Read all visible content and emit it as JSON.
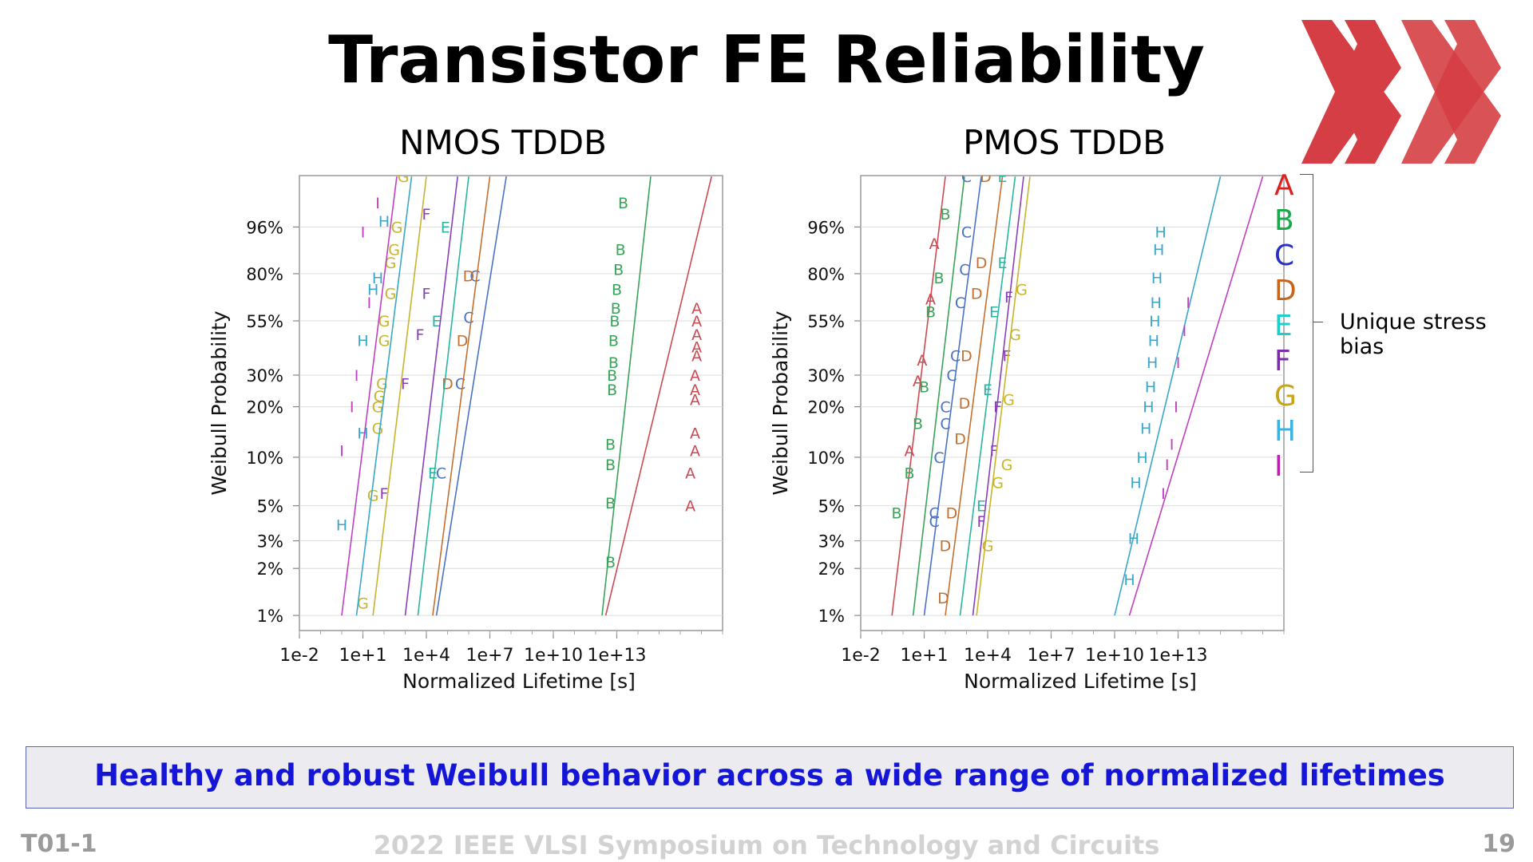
{
  "slide": {
    "title": "Transistor FE Reliability",
    "banner": "Healthy and robust Weibull behavior across a wide range of normalized lifetimes",
    "footer_left": "T01-1",
    "footer_center": "2022 IEEE VLSI Symposium on Technology and Circuits",
    "footer_right": "19"
  },
  "legend": {
    "note": "Unique stress bias",
    "items": [
      {
        "label": "A",
        "color": "#e02020"
      },
      {
        "label": "B",
        "color": "#19a84a"
      },
      {
        "label": "C",
        "color": "#2a2ec8"
      },
      {
        "label": "D",
        "color": "#c8651a"
      },
      {
        "label": "E",
        "color": "#1ccfc8"
      },
      {
        "label": "F",
        "color": "#7a2da6"
      },
      {
        "label": "G",
        "color": "#c8a512"
      },
      {
        "label": "H",
        "color": "#3bb2e0"
      },
      {
        "label": "I",
        "color": "#c020b0"
      }
    ]
  },
  "series_colors": {
    "A": "#cc4a52",
    "B": "#3aa35a",
    "C": "#4a72c4",
    "D": "#c37030",
    "E": "#2ab5a0",
    "F": "#8a3eb8",
    "G": "#c8b42a",
    "H": "#3aa6c8",
    "I": "#c040c0"
  },
  "chart_data": [
    {
      "type": "scatter",
      "title": "NMOS TDDB",
      "xlabel": "Normalized Lifetime [s]",
      "ylabel": "Weibull Probability",
      "x_scale": "log10",
      "xlim": [
        0.01,
        1e+18
      ],
      "x_ticks": [
        "1e-2",
        "1e+1",
        "1e+4",
        "1e+7",
        "1e+10",
        "1e+13"
      ],
      "y_scale": "weibull",
      "ylim": [
        0.008,
        0.999
      ],
      "y_ticks": [
        "1%",
        "2%",
        "3%",
        "5%",
        "10%",
        "20%",
        "30%",
        "55%",
        "80%",
        "96%"
      ],
      "grid": true,
      "series": [
        {
          "name": "A",
          "fit_line": [
            [
              3000000000000.0,
              0.01
            ],
            [
              3e+17,
              0.999
            ]
          ],
          "points": [
            [
              3e+16,
              0.05
            ],
            [
              3e+16,
              0.08
            ],
            [
              5e+16,
              0.11
            ],
            [
              5e+16,
              0.14
            ],
            [
              5e+16,
              0.22
            ],
            [
              5e+16,
              0.25
            ],
            [
              5e+16,
              0.3
            ],
            [
              6e+16,
              0.38
            ],
            [
              6e+16,
              0.42
            ],
            [
              6e+16,
              0.48
            ],
            [
              6e+16,
              0.55
            ],
            [
              6e+16,
              0.62
            ]
          ]
        },
        {
          "name": "B",
          "fit_line": [
            [
              2000000000000.0,
              0.01
            ],
            [
              400000000000000.0,
              0.999
            ]
          ],
          "points": [
            [
              5000000000000.0,
              0.022
            ],
            [
              5000000000000.0,
              0.052
            ],
            [
              5000000000000.0,
              0.09
            ],
            [
              5000000000000.0,
              0.12
            ],
            [
              6000000000000.0,
              0.25
            ],
            [
              6000000000000.0,
              0.3
            ],
            [
              7000000000000.0,
              0.35
            ],
            [
              7000000000000.0,
              0.45
            ],
            [
              8000000000000.0,
              0.55
            ],
            [
              9000000000000.0,
              0.62
            ],
            [
              10000000000000.0,
              0.72
            ],
            [
              12000000000000.0,
              0.82
            ],
            [
              15000000000000.0,
              0.9
            ],
            [
              20000000000000.0,
              0.99
            ]
          ]
        },
        {
          "name": "C",
          "fit_line": [
            [
              30000.0,
              0.01
            ],
            [
              60000000.0,
              0.999
            ]
          ],
          "points": [
            [
              50000.0,
              0.08
            ],
            [
              400000.0,
              0.27
            ],
            [
              1000000.0,
              0.57
            ],
            [
              2000000.0,
              0.79
            ]
          ]
        },
        {
          "name": "D",
          "fit_line": [
            [
              20000.0,
              0.01
            ],
            [
              10000000.0,
              0.999
            ]
          ],
          "points": [
            [
              100000.0,
              0.27
            ],
            [
              500000.0,
              0.45
            ],
            [
              1000000.0,
              0.79
            ]
          ]
        },
        {
          "name": "E",
          "fit_line": [
            [
              4000.0,
              0.01
            ],
            [
              1000000.0,
              0.999
            ]
          ],
          "points": [
            [
              20000.0,
              0.08
            ],
            [
              30000.0,
              0.55
            ],
            [
              80000.0,
              0.96
            ]
          ]
        },
        {
          "name": "F",
          "fit_line": [
            [
              1000.0,
              0.01
            ],
            [
              300000.0,
              0.999
            ]
          ],
          "points": [
            [
              100.0,
              0.06
            ],
            [
              1000.0,
              0.27
            ],
            [
              5000.0,
              0.48
            ],
            [
              10000.0,
              0.7
            ],
            [
              10000.0,
              0.98
            ]
          ]
        },
        {
          "name": "G",
          "fit_line": [
            [
              30.0,
              0.01
            ],
            [
              10000.0,
              0.999
            ]
          ],
          "points": [
            [
              10.0,
              0.012
            ],
            [
              30.0,
              0.058
            ],
            [
              50.0,
              0.15
            ],
            [
              50.0,
              0.2
            ],
            [
              60.0,
              0.23
            ],
            [
              80.0,
              0.27
            ],
            [
              100.0,
              0.45
            ],
            [
              100.0,
              0.55
            ],
            [
              200.0,
              0.7
            ],
            [
              200.0,
              0.85
            ],
            [
              300.0,
              0.9
            ],
            [
              400.0,
              0.96
            ],
            [
              800.0,
              1.0
            ]
          ]
        },
        {
          "name": "H",
          "fit_line": [
            [
              5.0,
              0.01
            ],
            [
              2000.0,
              0.999
            ]
          ],
          "points": [
            [
              1,
              0.038
            ],
            [
              10.0,
              0.14
            ],
            [
              10.0,
              0.45
            ],
            [
              30.0,
              0.72
            ],
            [
              50.0,
              0.78
            ],
            [
              100.0,
              0.97
            ]
          ]
        },
        {
          "name": "I",
          "fit_line": [
            [
              1.0,
              0.01
            ],
            [
              400.0,
              0.999
            ]
          ],
          "points": [
            [
              1,
              0.11
            ],
            [
              3,
              0.2
            ],
            [
              5,
              0.3
            ],
            [
              20.0,
              0.65
            ],
            [
              10.0,
              0.95
            ],
            [
              50.0,
              0.99
            ]
          ]
        }
      ]
    },
    {
      "type": "scatter",
      "title": "PMOS TDDB",
      "xlabel": "Normalized Lifetime [s]",
      "ylabel": "Weibull Probability",
      "x_scale": "log10",
      "xlim": [
        0.01,
        1e+18
      ],
      "x_ticks": [
        "1e-2",
        "1e+1",
        "1e+4",
        "1e+7",
        "1e+10",
        "1e+13"
      ],
      "y_scale": "weibull",
      "ylim": [
        0.008,
        0.999
      ],
      "y_ticks": [
        "1%",
        "2%",
        "3%",
        "5%",
        "10%",
        "20%",
        "30%",
        "55%",
        "80%",
        "96%"
      ],
      "grid": true,
      "series": [
        {
          "name": "A",
          "fit_line": [
            [
              0.3,
              0.01
            ],
            [
              100.0,
              0.999
            ]
          ],
          "points": [
            [
              2,
              0.11
            ],
            [
              5,
              0.28
            ],
            [
              8,
              0.36
            ],
            [
              20.0,
              0.67
            ],
            [
              30.0,
              0.92
            ]
          ]
        },
        {
          "name": "B",
          "fit_line": [
            [
              3,
              0.01
            ],
            [
              800.0,
              0.999
            ]
          ],
          "points": [
            [
              0.5,
              0.045
            ],
            [
              2,
              0.08
            ],
            [
              5,
              0.16
            ],
            [
              10.0,
              0.26
            ],
            [
              20.0,
              0.6
            ],
            [
              50.0,
              0.78
            ],
            [
              100.0,
              0.98
            ]
          ]
        },
        {
          "name": "C",
          "fit_line": [
            [
              10.0,
              0.01
            ],
            [
              5000.0,
              0.999
            ]
          ],
          "points": [
            [
              30.0,
              0.04
            ],
            [
              30.0,
              0.045
            ],
            [
              50.0,
              0.1
            ],
            [
              100.0,
              0.16
            ],
            [
              100.0,
              0.2
            ],
            [
              200.0,
              0.3
            ],
            [
              300.0,
              0.38
            ],
            [
              500.0,
              0.65
            ],
            [
              800.0,
              0.82
            ],
            [
              1000.0,
              0.95
            ],
            [
              1000.0,
              1.0
            ]
          ]
        },
        {
          "name": "D",
          "fit_line": [
            [
              100.0,
              0.01
            ],
            [
              50000.0,
              0.999
            ]
          ],
          "points": [
            [
              80.0,
              0.013
            ],
            [
              100.0,
              0.028
            ],
            [
              200.0,
              0.045
            ],
            [
              500.0,
              0.13
            ],
            [
              800.0,
              0.21
            ],
            [
              1000.0,
              0.38
            ],
            [
              3000.0,
              0.7
            ],
            [
              5000.0,
              0.85
            ],
            [
              8000.0,
              1.0
            ]
          ]
        },
        {
          "name": "E",
          "fit_line": [
            [
              500.0,
              0.01
            ],
            [
              200000.0,
              0.999
            ]
          ],
          "points": [
            [
              5000.0,
              0.05
            ],
            [
              10000.0,
              0.25
            ],
            [
              20000.0,
              0.6
            ],
            [
              50000.0,
              0.85
            ],
            [
              50000.0,
              1.0
            ]
          ]
        },
        {
          "name": "F",
          "fit_line": [
            [
              2000.0,
              0.01
            ],
            [
              500000.0,
              0.999
            ]
          ],
          "points": [
            [
              5000.0,
              0.04
            ],
            [
              20000.0,
              0.11
            ],
            [
              30000.0,
              0.2
            ],
            [
              80000.0,
              0.38
            ],
            [
              100000.0,
              0.68
            ]
          ]
        },
        {
          "name": "G",
          "fit_line": [
            [
              3000.0,
              0.01
            ],
            [
              1000000.0,
              0.999
            ]
          ],
          "points": [
            [
              10000.0,
              0.028
            ],
            [
              30000.0,
              0.07
            ],
            [
              80000.0,
              0.09
            ],
            [
              100000.0,
              0.22
            ],
            [
              200000.0,
              0.48
            ],
            [
              400000.0,
              0.72
            ]
          ]
        },
        {
          "name": "H",
          "fit_line": [
            [
              10000000000.0,
              0.01
            ],
            [
              1000000000000000.0,
              0.999
            ]
          ],
          "points": [
            [
              50000000000.0,
              0.017
            ],
            [
              80000000000.0,
              0.031
            ],
            [
              100000000000.0,
              0.07
            ],
            [
              200000000000.0,
              0.1
            ],
            [
              300000000000.0,
              0.15
            ],
            [
              400000000000.0,
              0.2
            ],
            [
              500000000000.0,
              0.26
            ],
            [
              600000000000.0,
              0.35
            ],
            [
              700000000000.0,
              0.45
            ],
            [
              800000000000.0,
              0.55
            ],
            [
              900000000000.0,
              0.65
            ],
            [
              1000000000000.0,
              0.78
            ],
            [
              1200000000000.0,
              0.9
            ],
            [
              1500000000000.0,
              0.95
            ]
          ]
        },
        {
          "name": "I",
          "fit_line": [
            [
              50000000000.0,
              0.01
            ],
            [
              1e+17,
              0.999
            ]
          ],
          "points": [
            [
              2000000000000.0,
              0.06
            ],
            [
              3000000000000.0,
              0.09
            ],
            [
              5000000000000.0,
              0.12
            ],
            [
              8000000000000.0,
              0.2
            ],
            [
              10000000000000.0,
              0.35
            ],
            [
              20000000000000.0,
              0.5
            ],
            [
              30000000000000.0,
              0.65
            ]
          ]
        }
      ]
    }
  ]
}
